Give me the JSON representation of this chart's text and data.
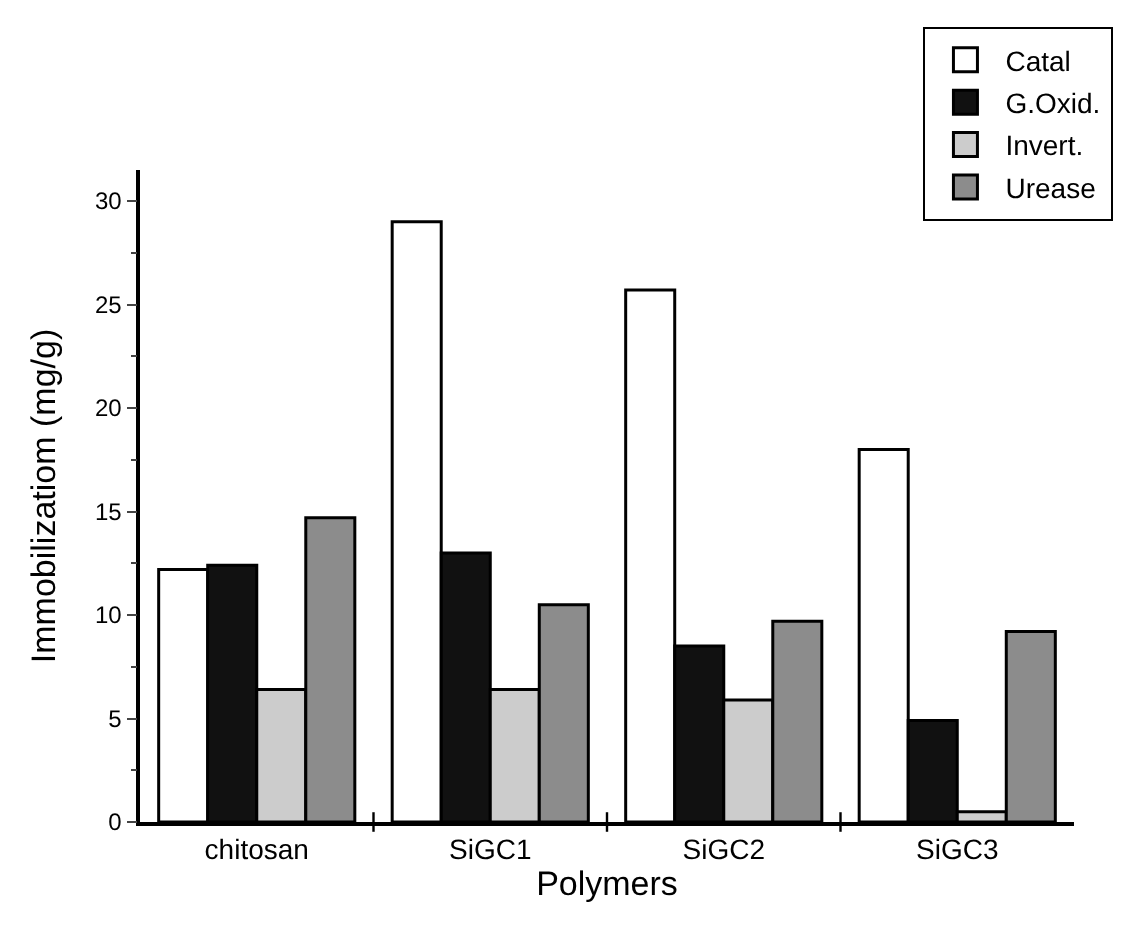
{
  "chart_data": {
    "type": "bar",
    "xlabel": "Polymers",
    "ylabel": "Immobilizatiom (mg/g)",
    "categories": [
      "chitosan",
      "SiGC1",
      "SiGC2",
      "SiGC3"
    ],
    "series": [
      {
        "name": "Catal",
        "color": "#ffffff",
        "values": [
          12.2,
          29.0,
          25.7,
          18.0
        ]
      },
      {
        "name": "G.Oxid.",
        "color": "#111111",
        "values": [
          12.4,
          13.0,
          8.5,
          4.9
        ]
      },
      {
        "name": "Invert.",
        "color": "#cccccc",
        "values": [
          6.4,
          6.4,
          5.9,
          0.5
        ]
      },
      {
        "name": "Urease",
        "color": "#8c8c8c",
        "values": [
          14.7,
          10.5,
          9.7,
          9.2
        ]
      }
    ],
    "ylim": [
      0,
      31.5
    ],
    "yticks": [
      0,
      5,
      10,
      15,
      20,
      25,
      30
    ],
    "legend": "top right"
  }
}
